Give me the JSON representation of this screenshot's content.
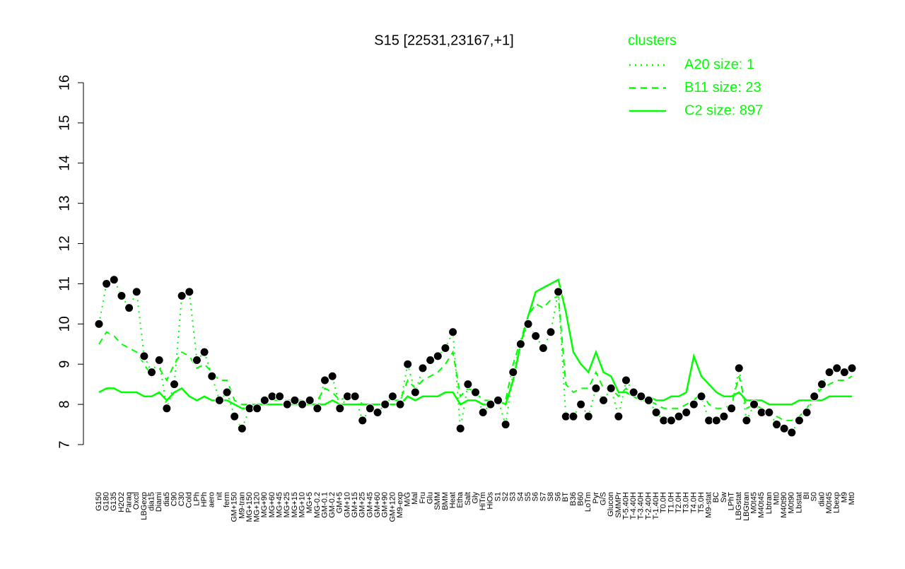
{
  "chart_data": {
    "type": "line",
    "title": "S15 [22531,23167,+1]",
    "legend_title": "clusters",
    "legend_position": "top-right",
    "categories": [
      "G150",
      "G180",
      "G135",
      "H2O2",
      "Paraq",
      "Oxctl",
      "LBGexp",
      "dia15",
      "Diami",
      "dia5",
      "C90",
      "C30",
      "Cold",
      "LPh",
      "HPh",
      "aero",
      "nit",
      "ferm",
      "GM+150",
      "M9-tran",
      "MG+150",
      "MG+120",
      "MG+90",
      "MG+60",
      "MG+45",
      "MG+25",
      "MG+15",
      "MG+10",
      "MG+5",
      "MG-0.2",
      "GM-0.1",
      "GM-0.2",
      "GM+5",
      "GM+10",
      "GM+15",
      "GM+25",
      "GM+45",
      "GM+60",
      "GM+90",
      "GM+120",
      "M9-exp",
      "M/G",
      "Mal",
      "Fru",
      "Glu",
      "SMM",
      "BMM",
      "Heat",
      "Etha",
      "Salt",
      "Gly",
      "HiTm",
      "HiOs",
      "S1",
      "S2",
      "S3",
      "S4",
      "S5",
      "S6",
      "S7",
      "S8",
      "S6",
      "BT",
      "B36",
      "B60",
      "LoTm",
      "Pyr",
      "G/S",
      "Glucon",
      "SMMPr",
      "T-5.40H",
      "T-4.40H",
      "T-3.40H",
      "T-2.40H",
      "T-1.40H",
      "T0.0H",
      "T1.0H",
      "T2.0H",
      "T3.0H",
      "T4.0H",
      "T5.0H",
      "M9-stat",
      "BC",
      "Sw",
      "LPhT",
      "LBGstat",
      "LBGtran",
      "M0t45",
      "M40t45",
      "Lbtran",
      "Mt0",
      "M40t90",
      "M0t90",
      "Lbstat",
      "BI",
      "S0",
      "dia0",
      "M0t45",
      "Lbexp",
      "M9",
      "Mt0"
    ],
    "series": [
      {
        "name": "A20 size: 1",
        "color": "#00ff00",
        "dash": "dotted",
        "markers": true,
        "values": [
          10.0,
          11.0,
          11.1,
          10.7,
          10.4,
          10.8,
          9.2,
          8.8,
          9.1,
          7.9,
          8.5,
          10.7,
          10.8,
          9.1,
          9.3,
          8.7,
          8.1,
          8.3,
          7.7,
          7.4,
          7.9,
          7.9,
          8.1,
          8.2,
          8.2,
          8.0,
          8.1,
          8.0,
          8.1,
          7.9,
          8.6,
          8.7,
          7.9,
          8.2,
          8.2,
          7.6,
          7.9,
          7.8,
          8.0,
          8.2,
          8.0,
          9.0,
          8.3,
          8.9,
          9.1,
          9.2,
          9.4,
          9.8,
          7.4,
          8.5,
          8.3,
          7.8,
          8.0,
          8.1,
          7.5,
          8.8,
          9.5,
          10.0,
          9.7,
          9.4,
          9.8,
          10.8,
          7.7,
          7.7,
          8.0,
          7.7,
          8.4,
          8.1,
          8.4,
          7.7,
          8.6,
          8.3,
          8.2,
          8.1,
          7.8,
          7.6,
          7.6,
          7.7,
          7.8,
          8.0,
          8.2,
          7.6,
          7.6,
          7.7,
          7.9,
          8.9,
          7.6,
          8.0,
          7.8,
          7.8,
          7.5,
          7.4,
          7.3,
          7.6,
          7.8,
          8.2,
          8.5,
          8.8,
          8.9,
          8.8,
          8.9
        ]
      },
      {
        "name": "B11 size: 23",
        "color": "#00ff00",
        "dash": "dashed",
        "markers": false,
        "values": [
          9.5,
          9.8,
          9.7,
          9.5,
          9.4,
          9.3,
          9.0,
          8.7,
          8.9,
          8.6,
          9.0,
          9.3,
          9.2,
          8.9,
          9.0,
          8.8,
          8.6,
          8.6,
          8.1,
          8.0,
          8.0,
          8.0,
          8.1,
          8.1,
          8.1,
          8.1,
          8.1,
          8.1,
          8.1,
          8.1,
          8.4,
          8.3,
          8.1,
          8.2,
          8.2,
          8.0,
          8.0,
          8.0,
          8.0,
          8.1,
          8.1,
          8.6,
          8.4,
          8.6,
          8.7,
          8.8,
          9.0,
          9.3,
          8.2,
          8.4,
          8.3,
          8.1,
          8.1,
          8.1,
          8.1,
          9.0,
          9.6,
          10.2,
          10.5,
          10.4,
          10.6,
          10.7,
          8.5,
          8.3,
          8.4,
          8.4,
          8.8,
          8.4,
          8.4,
          8.2,
          8.4,
          8.2,
          8.1,
          8.1,
          8.0,
          7.9,
          7.9,
          7.9,
          8.0,
          8.1,
          8.3,
          8.0,
          7.9,
          7.9,
          8.0,
          8.7,
          7.9,
          8.0,
          7.9,
          7.8,
          7.7,
          7.6,
          7.6,
          7.7,
          7.9,
          8.2,
          8.4,
          8.5,
          8.6,
          8.6,
          8.7
        ]
      },
      {
        "name": "C2 size: 897",
        "color": "#00ff00",
        "dash": "solid",
        "markers": false,
        "values": [
          8.3,
          8.4,
          8.4,
          8.3,
          8.3,
          8.3,
          8.2,
          8.2,
          8.3,
          8.1,
          8.3,
          8.4,
          8.2,
          8.1,
          8.2,
          8.1,
          8.1,
          8.1,
          8.0,
          7.9,
          7.9,
          8.0,
          8.0,
          8.0,
          8.0,
          8.0,
          8.0,
          8.0,
          8.0,
          8.0,
          8.0,
          8.1,
          8.0,
          8.0,
          8.0,
          8.0,
          8.0,
          8.0,
          8.0,
          8.0,
          8.0,
          8.2,
          8.1,
          8.2,
          8.2,
          8.2,
          8.3,
          8.3,
          8.0,
          8.1,
          8.1,
          8.0,
          8.0,
          8.1,
          8.0,
          8.6,
          9.5,
          10.2,
          10.8,
          10.9,
          11.0,
          11.1,
          10.3,
          9.3,
          9.0,
          8.8,
          9.3,
          8.8,
          8.7,
          8.3,
          8.3,
          8.2,
          8.1,
          8.2,
          8.1,
          8.1,
          8.2,
          8.2,
          8.3,
          9.2,
          8.7,
          8.5,
          8.3,
          8.2,
          8.2,
          8.3,
          8.1,
          8.1,
          8.1,
          8.0,
          8.0,
          8.0,
          8.0,
          8.1,
          8.1,
          8.1,
          8.1,
          8.2,
          8.2,
          8.2,
          8.2
        ]
      }
    ],
    "ylim": [
      7,
      16
    ],
    "yticks": [
      7,
      8,
      9,
      10,
      11,
      12,
      13,
      14,
      15,
      16
    ]
  }
}
